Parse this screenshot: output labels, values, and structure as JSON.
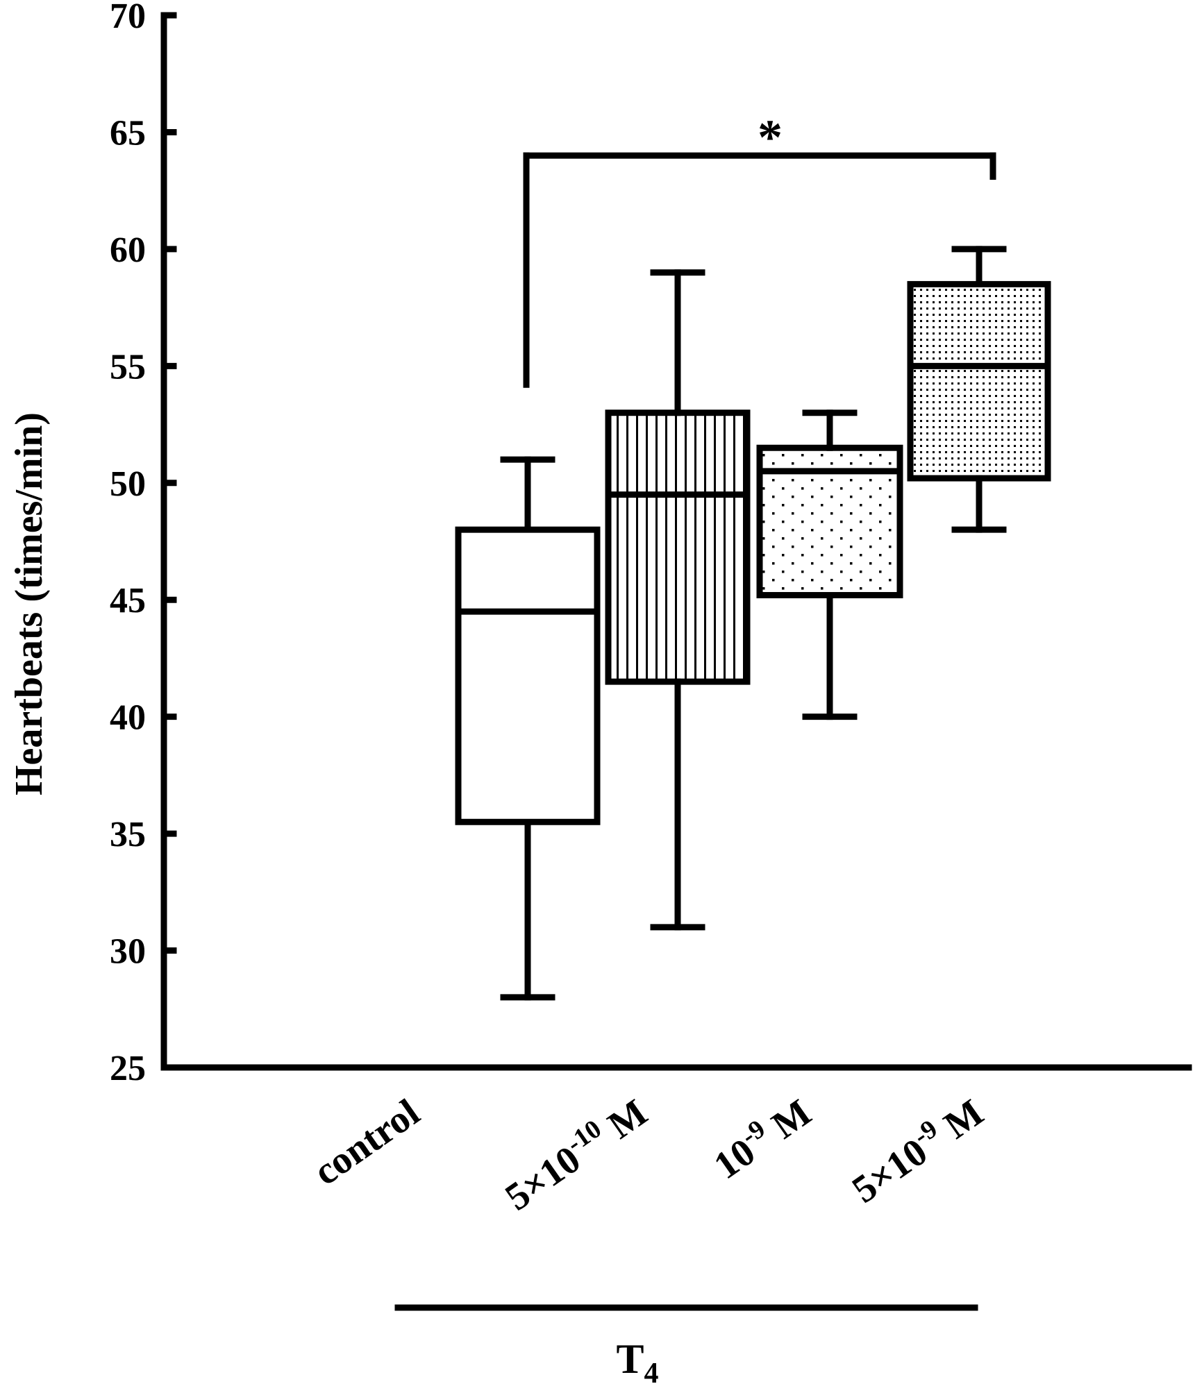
{
  "chart_data": {
    "type": "box",
    "ylabel": "Heartbeats (times/min)",
    "ylim": [
      25,
      70
    ],
    "yticks": [
      25,
      30,
      35,
      40,
      45,
      50,
      55,
      60,
      65,
      70
    ],
    "categories": [
      {
        "key": "control",
        "base": "control",
        "sup": "",
        "tail": ""
      },
      {
        "key": "5e-10",
        "base": "5×10",
        "sup": "-10",
        "tail": " M"
      },
      {
        "key": "1e-9",
        "base": "10",
        "sup": "-9",
        "tail": " M"
      },
      {
        "key": "5e-9",
        "base": "5×10",
        "sup": "-9",
        "tail": " M"
      }
    ],
    "boxes": [
      {
        "category": "control",
        "pattern": "none",
        "min": 28,
        "q1": 35.5,
        "median": 44.5,
        "q3": 48,
        "max": 51
      },
      {
        "category": "5e-10",
        "pattern": "vertical-lines",
        "min": 31,
        "q1": 41.5,
        "median": 49.5,
        "q3": 53,
        "max": 59
      },
      {
        "category": "1e-9",
        "pattern": "sparse-dots",
        "min": 40,
        "q1": 45.2,
        "median": 50.5,
        "q3": 51.5,
        "max": 53
      },
      {
        "category": "5e-9",
        "pattern": "dense-dots",
        "min": 48,
        "q1": 50.2,
        "median": 55,
        "q3": 58.5,
        "max": 60
      }
    ],
    "group": {
      "label": "T",
      "sub": "4",
      "members": [
        "5e-10",
        "1e-9",
        "5e-9"
      ]
    },
    "significance": {
      "from": "control",
      "to": "5e-9",
      "label": "*",
      "y": 64
    }
  }
}
